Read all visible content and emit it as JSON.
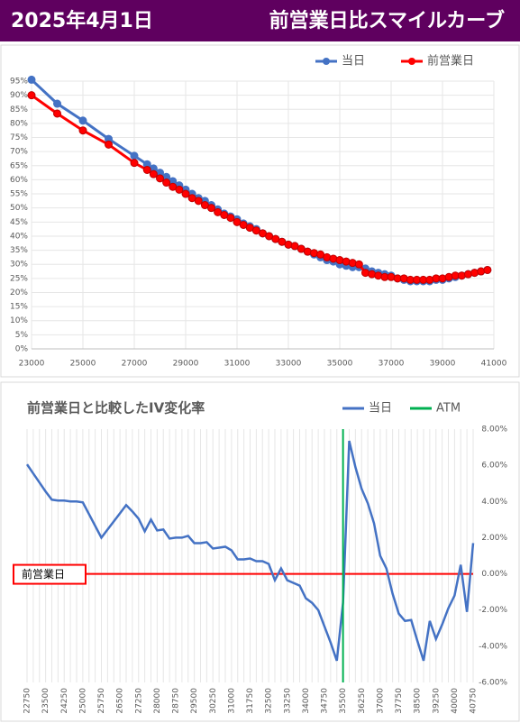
{
  "header": {
    "date": "2025年4月1日",
    "title": "前営業日比スマイルカーブ"
  },
  "chart_data": [
    {
      "type": "line",
      "legend": "top-right",
      "grid": true,
      "x": [
        23000,
        24000,
        25000,
        26000,
        27000,
        27500,
        27750,
        28000,
        28250,
        28500,
        28750,
        29000,
        29250,
        29500,
        29750,
        30000,
        30250,
        30500,
        30750,
        31000,
        31250,
        31500,
        31750,
        32000,
        32250,
        32500,
        32750,
        33000,
        33250,
        33500,
        33750,
        34000,
        34250,
        34500,
        34750,
        35000,
        35250,
        35500,
        35750,
        36000,
        36250,
        36500,
        36750,
        37000,
        37250,
        37500,
        37750,
        38000,
        38250,
        38500,
        38750,
        39000,
        39250,
        39500,
        39750,
        40000,
        40250,
        40500,
        40750
      ],
      "series": [
        {
          "name": "当日",
          "color": "#4472c4",
          "values": [
            95.5,
            87,
            81,
            74.5,
            68.5,
            65.5,
            64,
            62.5,
            61,
            59.5,
            58,
            56.5,
            55,
            53.5,
            52.5,
            51,
            49.5,
            48,
            47,
            46,
            44.5,
            43.5,
            42.5,
            41,
            40,
            39,
            38,
            37,
            36.5,
            35.5,
            34.5,
            33.5,
            32.5,
            31.5,
            31,
            30,
            29.5,
            29,
            29,
            28.5,
            27.5,
            27,
            26.5,
            26,
            25,
            24.5,
            24,
            24,
            24,
            24,
            24.5,
            24.5,
            25,
            25.5,
            26,
            26.5,
            27,
            27.5,
            28
          ]
        },
        {
          "name": "前営業日",
          "color": "#ff0000",
          "values": [
            90,
            83.5,
            77.5,
            72.5,
            66,
            63.5,
            62,
            60.5,
            59,
            57.5,
            56.5,
            55,
            53.5,
            52.5,
            51,
            50,
            48.5,
            47.5,
            46.5,
            45,
            44,
            43,
            42,
            41,
            40,
            39,
            38,
            37,
            36.5,
            35.5,
            34.5,
            34,
            33.5,
            32.5,
            32,
            31.5,
            31,
            30.5,
            30,
            27,
            26.5,
            26,
            25.5,
            25.5,
            25,
            25,
            24.5,
            24.5,
            24.5,
            24.5,
            25,
            25,
            25.5,
            26,
            26,
            26.5,
            27,
            27.5,
            28
          ]
        }
      ],
      "xlim": [
        23000,
        41000
      ],
      "xticks": [
        23000,
        25000,
        27000,
        29000,
        31000,
        33000,
        35000,
        37000,
        39000,
        41000
      ],
      "ylim": [
        0,
        95
      ],
      "yticks": [
        {
          "value": 0,
          "label": "0%"
        },
        {
          "value": 5,
          "label": "5%"
        },
        {
          "value": 10,
          "label": "10%"
        },
        {
          "value": 15,
          "label": "15%"
        },
        {
          "value": 20,
          "label": "20%"
        },
        {
          "value": 25,
          "label": "25%"
        },
        {
          "value": 30,
          "label": "30%"
        },
        {
          "value": 35,
          "label": "35%"
        },
        {
          "value": 40,
          "label": "40%"
        },
        {
          "value": 45,
          "label": "45%"
        },
        {
          "value": 50,
          "label": "50%"
        },
        {
          "value": 55,
          "label": "55%"
        },
        {
          "value": 60,
          "label": "60%"
        },
        {
          "value": 65,
          "label": "65%"
        },
        {
          "value": 70,
          "label": "70%"
        },
        {
          "value": 75,
          "label": "75%"
        },
        {
          "value": 80,
          "label": "80%"
        },
        {
          "value": 85,
          "label": "85%"
        },
        {
          "value": 90,
          "label": "90%"
        },
        {
          "value": 95,
          "label": "95%"
        }
      ]
    },
    {
      "type": "line",
      "title": "前営業日と比較したIV変化率",
      "legend": "top-right",
      "categories": [
        22750,
        null,
        null,
        23500,
        null,
        null,
        24250,
        null,
        null,
        25000,
        null,
        null,
        25750,
        null,
        null,
        26500,
        null,
        null,
        27250,
        null,
        null,
        28000,
        null,
        null,
        28750,
        null,
        null,
        29500,
        null,
        null,
        30250,
        null,
        null,
        31000,
        null,
        null,
        31750,
        null,
        null,
        32500,
        null,
        null,
        33250,
        null,
        null,
        34000,
        null,
        null,
        34750,
        null,
        null,
        35500,
        null,
        null,
        36250,
        null,
        null,
        37000,
        null,
        null,
        37750,
        null,
        null,
        38500,
        null,
        null,
        39250,
        null,
        null,
        40000,
        null,
        null,
        40750
      ],
      "series": [
        {
          "name": "当日",
          "color": "#4472c4",
          "axis": "y2",
          "values": [
            6.05,
            5.55,
            5.05,
            4.55,
            4.1,
            4.05,
            4.05,
            4.0,
            4.0,
            3.95,
            3.3,
            2.65,
            2.0,
            2.45,
            2.9,
            3.35,
            3.8,
            3.45,
            3.05,
            2.35,
            3.0,
            2.4,
            2.45,
            1.95,
            2.0,
            2.0,
            2.1,
            1.7,
            1.7,
            1.75,
            1.4,
            1.45,
            1.5,
            1.3,
            0.8,
            0.8,
            0.85,
            0.7,
            0.7,
            0.55,
            -0.35,
            0.3,
            -0.35,
            -0.5,
            -0.65,
            -1.35,
            -1.6,
            -2.0,
            -2.9,
            -3.8,
            -4.8,
            -1.6,
            7.35,
            5.9,
            4.7,
            3.9,
            2.8,
            1.0,
            0.3,
            -1.1,
            -2.2,
            -2.6,
            -2.55,
            -3.7,
            -4.8,
            -2.6,
            -3.6,
            -2.8,
            -1.9,
            -1.2,
            0.5,
            -2.1,
            1.7
          ]
        },
        {
          "name": "ATM",
          "color": "#00b050",
          "x": 35500
        }
      ],
      "annotation": {
        "text": "前営業日",
        "value": 0,
        "color": "#ff0000"
      },
      "y2lim": [
        -6,
        8
      ],
      "y2ticks": [
        {
          "value": 8,
          "label": "8.00%"
        },
        {
          "value": 6,
          "label": "6.00%"
        },
        {
          "value": 4,
          "label": "4.00%"
        },
        {
          "value": 2,
          "label": "2.00%"
        },
        {
          "value": 0,
          "label": "0.00%"
        },
        {
          "value": -2,
          "label": "-2.00%"
        },
        {
          "value": -4,
          "label": "-4.00%"
        },
        {
          "value": -6,
          "label": "-6.00%"
        }
      ]
    }
  ]
}
